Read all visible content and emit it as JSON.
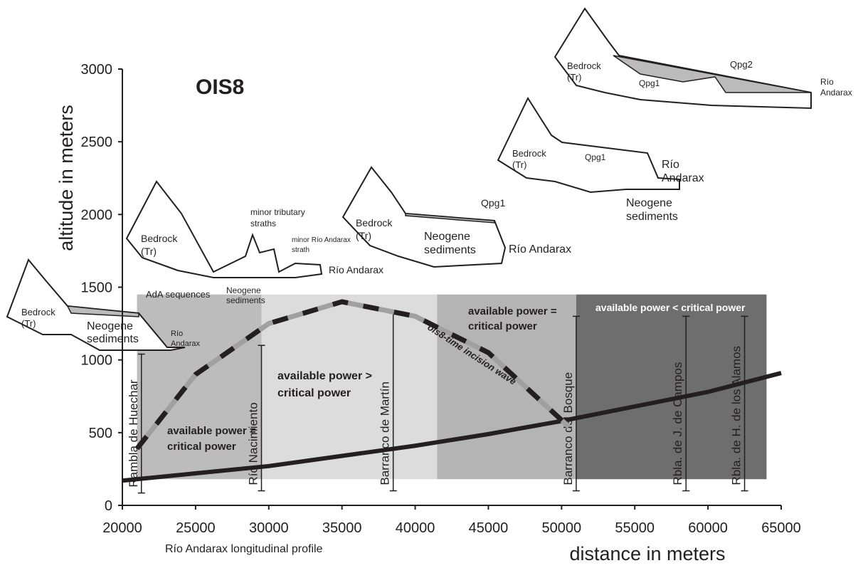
{
  "chart_data": {
    "type": "line",
    "xlabel": "distance in meters",
    "ylabel": "altitude in meters",
    "xlim": [
      20000,
      65000
    ],
    "ylim": [
      0,
      3000
    ],
    "xticks": [
      20000,
      25000,
      30000,
      35000,
      40000,
      45000,
      50000,
      55000,
      60000,
      65000
    ],
    "yticks": [
      0,
      500,
      1000,
      1500,
      2000,
      2500,
      3000
    ],
    "zones": [
      {
        "x": [
          21000,
          29500
        ],
        "y": [
          180,
          1450
        ],
        "color": "#bcbcbc"
      },
      {
        "x": [
          29500,
          41500
        ],
        "y": [
          180,
          1450
        ],
        "color": "#dcdcdc"
      },
      {
        "x": [
          41500,
          51000
        ],
        "y": [
          180,
          1450
        ],
        "color": "#b4b4b4"
      },
      {
        "x": [
          51000,
          64000
        ],
        "y": [
          180,
          1450
        ],
        "color": "#6e6e6e"
      }
    ],
    "markers": [
      {
        "label": "Rambla de Huechar",
        "x": 21300,
        "y": [
          85,
          1040
        ]
      },
      {
        "label": "Río Nacimiento",
        "x": 29500,
        "y": [
          100,
          1100
        ]
      },
      {
        "label": "Barranco de Martín",
        "x": 38500,
        "y": [
          100,
          1320
        ]
      },
      {
        "label": "Barranco del Bosque",
        "x": 51000,
        "y": [
          100,
          1300
        ]
      },
      {
        "label": "Rbla. de J. de Campos",
        "x": 58500,
        "y": [
          100,
          1300
        ]
      },
      {
        "label": "Rbla. de H. de los Alamos",
        "x": 62500,
        "y": [
          100,
          1300
        ]
      }
    ],
    "series": [
      {
        "name": "Río Andarax longitudinal profile",
        "color": "#231f20",
        "style": "solid",
        "x": [
          20000,
          25000,
          30000,
          35000,
          40000,
          45000,
          50000,
          55000,
          60000,
          65000
        ],
        "values": [
          170,
          220,
          270,
          340,
          410,
          490,
          580,
          680,
          780,
          910
        ]
      },
      {
        "name": "oís8-time incision wave",
        "color": "#231f20",
        "style": "dashed",
        "x": [
          21000,
          25000,
          30000,
          35000,
          40000,
          45000,
          50500
        ],
        "values": [
          390,
          900,
          1250,
          1400,
          1300,
          1050,
          540
        ]
      }
    ],
    "annotations": [
      [
        "OIS8"
      ],
      [
        "available power =",
        "critical power"
      ],
      [
        "available power >",
        "critical power"
      ],
      [
        "available power =",
        "critical power"
      ],
      [
        "available power < critical power"
      ],
      [
        "oís8-time incision wave"
      ],
      [
        "Río Andarax longitudinal profile"
      ],
      [
        "Bedrock",
        "(Tr)"
      ],
      [
        "Neogene",
        "sediments"
      ],
      [
        "AdA sequences"
      ],
      [
        "Río",
        "Andarax"
      ],
      [
        "Bedrock",
        "(Tr)"
      ],
      [
        "minor tributary",
        "straths"
      ],
      [
        "minor Río Andarax",
        "strath"
      ],
      [
        "Neogene",
        "sediments"
      ],
      [
        "Río Andarax"
      ],
      [
        "Qpg1"
      ],
      [
        "Bedrock",
        "(Tr)"
      ],
      [
        "Neogene",
        "sediments"
      ],
      [
        "Río Andarax"
      ],
      [
        "Bedrock",
        "(Tr)"
      ],
      [
        "Qpg1"
      ],
      [
        "Río",
        "Andarax"
      ],
      [
        "Neogene",
        "sediments"
      ],
      [
        "Bedrock",
        "(Tr)"
      ],
      [
        "Qpg1"
      ],
      [
        "Qpg2"
      ],
      [
        "Río",
        "Andarax"
      ]
    ]
  }
}
